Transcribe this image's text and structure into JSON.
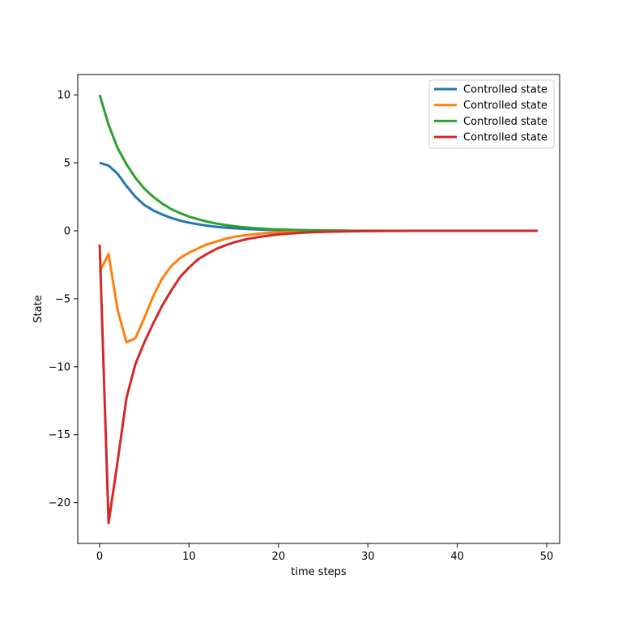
{
  "chart_data": {
    "type": "line",
    "title": "",
    "xlabel": "time steps",
    "ylabel": "State",
    "xlim": [
      -2.45,
      51.45
    ],
    "ylim": [
      -23.0,
      11.5
    ],
    "xticks": [
      0,
      10,
      20,
      30,
      40,
      50
    ],
    "yticks": [
      10,
      5,
      0,
      -5,
      -10,
      -15,
      -20
    ],
    "ytick_labels": [
      "10",
      "5",
      "0",
      "−5",
      "−10",
      "−15",
      "−20"
    ],
    "grid": false,
    "legend_position": "top-right",
    "x": [
      0,
      1,
      2,
      3,
      4,
      5,
      6,
      7,
      8,
      9,
      10,
      11,
      12,
      13,
      14,
      15,
      16,
      17,
      18,
      19,
      20,
      21,
      22,
      23,
      24,
      25,
      26,
      27,
      28,
      29,
      30,
      31,
      32,
      33,
      34,
      35,
      36,
      37,
      38,
      39,
      40,
      41,
      42,
      43,
      44,
      45,
      46,
      47,
      48,
      49
    ],
    "series": [
      {
        "name": "Controlled state",
        "color": "#1f77b4",
        "values": [
          5.0,
          4.8,
          4.2,
          3.3,
          2.5,
          1.9,
          1.5,
          1.2,
          0.95,
          0.75,
          0.6,
          0.48,
          0.38,
          0.3,
          0.24,
          0.19,
          0.15,
          0.12,
          0.09,
          0.07,
          0.05,
          0.04,
          0.03,
          0.02,
          0.02,
          0.01,
          0.01,
          0.01,
          0,
          0,
          0,
          0,
          0,
          0,
          0,
          0,
          0,
          0,
          0,
          0,
          0,
          0,
          0,
          0,
          0,
          0,
          0,
          0,
          0,
          0
        ]
      },
      {
        "name": "Controlled state",
        "color": "#ff7f0e",
        "values": [
          -3.0,
          -1.7,
          -5.8,
          -8.2,
          -7.9,
          -6.4,
          -4.8,
          -3.5,
          -2.6,
          -2.0,
          -1.6,
          -1.3,
          -1.0,
          -0.8,
          -0.6,
          -0.45,
          -0.35,
          -0.27,
          -0.2,
          -0.15,
          -0.11,
          -0.08,
          -0.06,
          -0.04,
          -0.03,
          -0.02,
          -0.02,
          -0.01,
          -0.01,
          0,
          0,
          0,
          0,
          0,
          0,
          0,
          0,
          0,
          0,
          0,
          0,
          0,
          0,
          0,
          0,
          0,
          0,
          0,
          0,
          0
        ]
      },
      {
        "name": "Controlled state",
        "color": "#2ca02c",
        "values": [
          10.0,
          7.8,
          6.1,
          4.9,
          3.9,
          3.1,
          2.5,
          2.0,
          1.6,
          1.3,
          1.05,
          0.85,
          0.68,
          0.54,
          0.43,
          0.34,
          0.27,
          0.21,
          0.17,
          0.13,
          0.1,
          0.08,
          0.06,
          0.05,
          0.04,
          0.03,
          0.02,
          0.02,
          0.01,
          0.01,
          0.01,
          0,
          0,
          0,
          0,
          0,
          0,
          0,
          0,
          0,
          0,
          0,
          0,
          0,
          0,
          0,
          0,
          0,
          0,
          0
        ]
      },
      {
        "name": "Controlled state",
        "color": "#d62728",
        "values": [
          -1.0,
          -21.5,
          -17.0,
          -12.3,
          -9.8,
          -8.2,
          -6.8,
          -5.5,
          -4.4,
          -3.4,
          -2.7,
          -2.1,
          -1.7,
          -1.35,
          -1.08,
          -0.86,
          -0.68,
          -0.54,
          -0.43,
          -0.34,
          -0.27,
          -0.21,
          -0.17,
          -0.13,
          -0.1,
          -0.08,
          -0.06,
          -0.05,
          -0.04,
          -0.03,
          -0.02,
          -0.02,
          -0.01,
          -0.01,
          -0.01,
          0,
          0,
          0,
          0,
          0,
          0,
          0,
          0,
          0,
          0,
          0,
          0,
          0,
          0,
          0
        ]
      }
    ]
  }
}
